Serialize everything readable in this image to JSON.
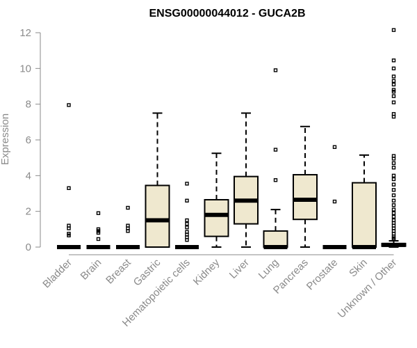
{
  "chart_data": {
    "type": "box",
    "title": "ENSG00000044012 - GUCA2B",
    "xlabel": "",
    "ylabel": "Expression",
    "ylim": [
      0,
      12
    ],
    "yticks": [
      0,
      2,
      4,
      6,
      8,
      10,
      12
    ],
    "categories": [
      "Bladder",
      "Brain",
      "Breast",
      "Gastric",
      "Hematopoietic cells",
      "Kidney",
      "Liver",
      "Lung",
      "Pancreas",
      "Prostate",
      "Skin",
      "Unknown / Other"
    ],
    "boxes": [
      {
        "min": 0,
        "q1": 0,
        "median": 0,
        "q3": 0,
        "max": 0,
        "outliers": [
          7.95,
          3.3,
          1.2,
          1.05,
          0.75,
          0.65
        ]
      },
      {
        "min": 0,
        "q1": 0,
        "median": 0,
        "q3": 0,
        "max": 0,
        "outliers": [
          1.9,
          1.0,
          0.9,
          0.8,
          0.45
        ]
      },
      {
        "min": 0,
        "q1": 0,
        "median": 0,
        "q3": 0,
        "max": 0,
        "outliers": [
          2.2,
          1.2,
          1.05,
          0.9
        ]
      },
      {
        "min": 0,
        "q1": 0,
        "median": 1.5,
        "q3": 3.45,
        "max": 7.5,
        "outliers": []
      },
      {
        "min": 0,
        "q1": 0,
        "median": 0,
        "q3": 0,
        "max": 0,
        "outliers": [
          3.55,
          2.6,
          1.5,
          1.3,
          1.1,
          0.85,
          0.7,
          0.55,
          0.4
        ]
      },
      {
        "min": 0,
        "q1": 0.6,
        "median": 1.8,
        "q3": 2.65,
        "max": 5.25,
        "outliers": []
      },
      {
        "min": 0,
        "q1": 1.3,
        "median": 2.6,
        "q3": 3.95,
        "max": 7.5,
        "outliers": []
      },
      {
        "min": 0,
        "q1": 0,
        "median": 0,
        "q3": 0.9,
        "max": 2.1,
        "outliers": [
          9.9,
          5.45,
          3.75
        ]
      },
      {
        "min": 0,
        "q1": 1.55,
        "median": 2.65,
        "q3": 4.05,
        "max": 6.75,
        "outliers": []
      },
      {
        "min": 0,
        "q1": 0,
        "median": 0,
        "q3": 0,
        "max": 0,
        "outliers": [
          5.6,
          2.55
        ]
      },
      {
        "min": 0,
        "q1": 0,
        "median": 0,
        "q3": 3.6,
        "max": 5.15,
        "outliers": []
      },
      {
        "min": 0,
        "q1": 0.05,
        "median": 0.12,
        "q3": 0.2,
        "max": 0.35,
        "outliers": [
          12.15,
          10.45,
          10.0,
          9.55,
          9.3,
          9.1,
          8.8,
          8.7,
          8.45,
          8.1,
          7.45,
          7.3,
          5.1,
          4.95,
          4.7,
          4.45,
          4.0,
          3.8,
          3.5,
          3.2,
          2.9,
          2.6,
          2.35,
          2.1,
          1.9,
          1.7,
          1.5,
          1.35,
          1.2,
          1.05,
          0.9,
          0.75,
          0.6,
          0.5,
          0.42
        ]
      }
    ],
    "colors": {
      "box_fill": "#efe8cf",
      "stroke": "#000000",
      "axis": "#8a8a8a"
    },
    "grid": false,
    "legend": "none"
  }
}
